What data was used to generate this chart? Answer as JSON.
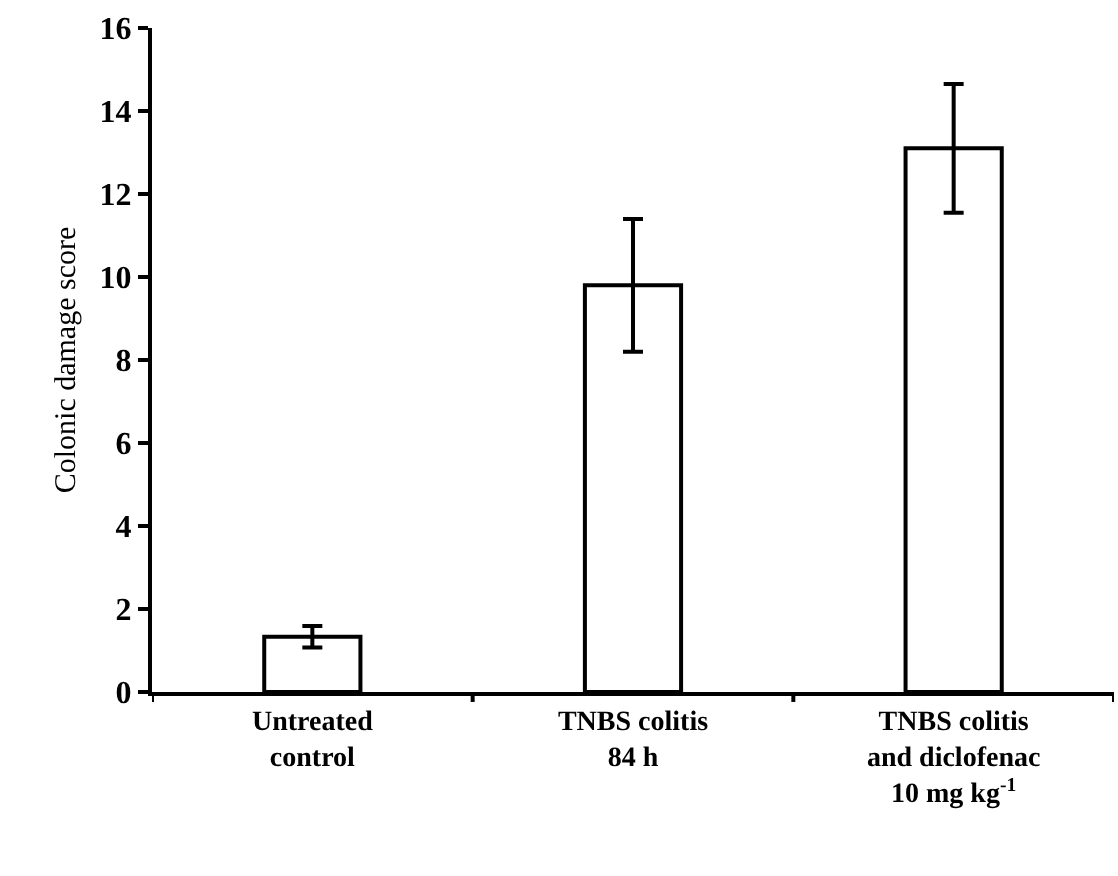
{
  "chart_data": {
    "type": "bar",
    "ylabel": "Colonic damage score",
    "categories": [
      "Untreated\ncontrol",
      "TNBS colitis\n84 h",
      "TNBS colitis\nand diclofenac\n10 mg kg$^{-1}$"
    ],
    "values": [
      1.33,
      9.8,
      13.1
    ],
    "errors": [
      0.26,
      1.6,
      1.55
    ],
    "color": "#ffffff",
    "ylim": [
      0,
      16
    ],
    "yticks": [
      0,
      2,
      4,
      6,
      8,
      10,
      12,
      14,
      16
    ]
  }
}
